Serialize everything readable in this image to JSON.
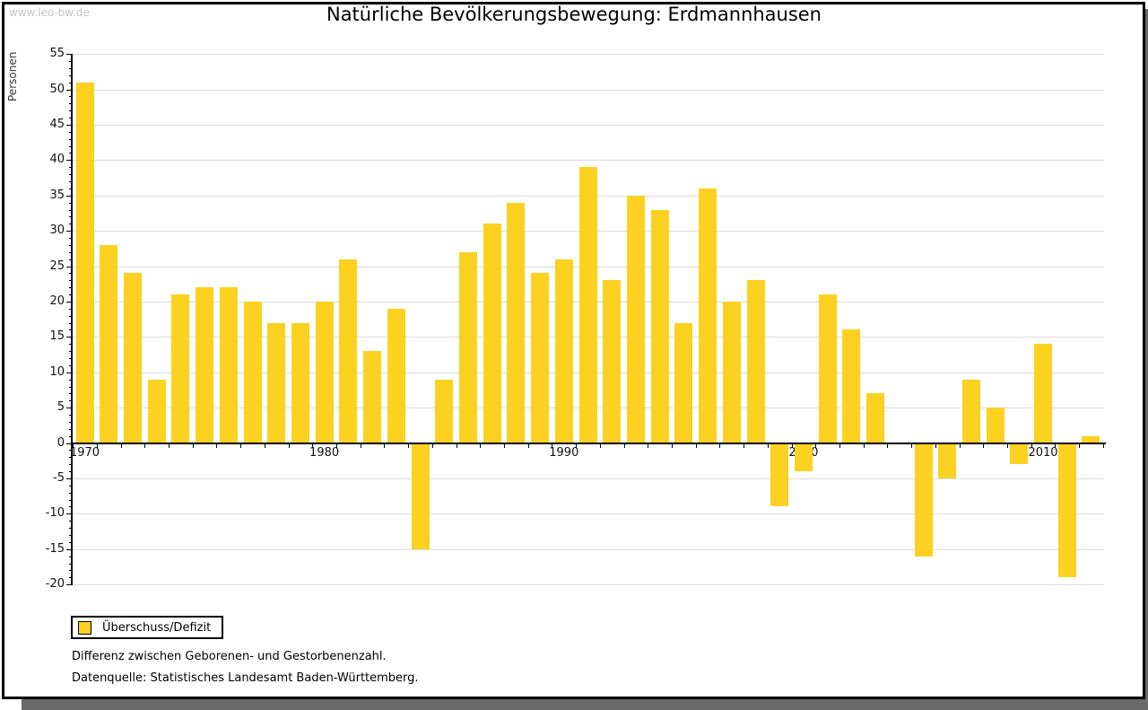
{
  "watermark": "www.leo-bw.de",
  "header": {
    "title": "Natürliche Bevölkerungsbewegung: Erdmannhausen"
  },
  "legend": {
    "label": "Überschuss/Defizit"
  },
  "footnotes": {
    "line1": "Differenz zwischen Geborenen- und Gestorbenenzahl.",
    "line2": "Datenquelle: Statistisches Landesamt Baden-Württemberg."
  },
  "colors": {
    "bar": "#fcd120",
    "grid": "#dcdcdc",
    "axis": "#000000",
    "tick_label": "#111111",
    "watermark": "#c3c3c3",
    "y_axis_title": "#333333",
    "shadow": "#696969"
  },
  "chart_data": {
    "type": "bar",
    "title": "Natürliche Bevölkerungsbewegung: Erdmannhausen",
    "xlabel": "",
    "ylabel": "Personen",
    "series_name": "Überschuss/Defizit",
    "x": [
      1970,
      1971,
      1972,
      1973,
      1974,
      1975,
      1976,
      1977,
      1978,
      1979,
      1980,
      1981,
      1982,
      1983,
      1984,
      1985,
      1986,
      1987,
      1988,
      1989,
      1990,
      1991,
      1992,
      1993,
      1994,
      1995,
      1996,
      1997,
      1998,
      1999,
      2000,
      2001,
      2002,
      2003,
      2004,
      2005,
      2006,
      2007,
      2008,
      2009,
      2010,
      2011,
      2012
    ],
    "values": [
      51,
      28,
      24,
      9,
      21,
      22,
      22,
      20,
      17,
      17,
      20,
      26,
      13,
      19,
      -15,
      9,
      27,
      31,
      34,
      24,
      26,
      39,
      23,
      35,
      33,
      17,
      36,
      20,
      23,
      -9,
      -4,
      21,
      16,
      7,
      0,
      -16,
      -5,
      9,
      5,
      -3,
      14,
      -19,
      1
    ],
    "ylim": [
      -20,
      55
    ],
    "ytick_step": 5,
    "ytick_minor_step": 1,
    "xtick_labeled_years": [
      1970,
      1980,
      1990,
      2000,
      2010
    ],
    "grid": true,
    "legend_position": "bottom-left"
  }
}
